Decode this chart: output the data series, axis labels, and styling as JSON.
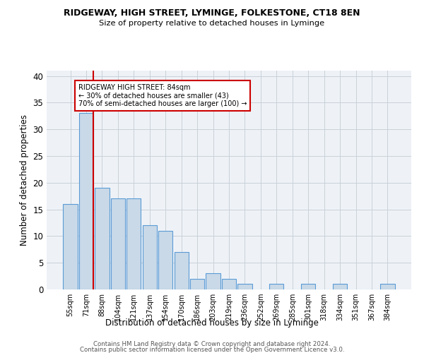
{
  "title1": "RIDGEWAY, HIGH STREET, LYMINGE, FOLKESTONE, CT18 8EN",
  "title2": "Size of property relative to detached houses in Lyminge",
  "xlabel": "Distribution of detached houses by size in Lyminge",
  "ylabel": "Number of detached properties",
  "categories": [
    "55sqm",
    "71sqm",
    "88sqm",
    "104sqm",
    "121sqm",
    "137sqm",
    "154sqm",
    "170sqm",
    "186sqm",
    "203sqm",
    "219sqm",
    "236sqm",
    "252sqm",
    "269sqm",
    "285sqm",
    "301sqm",
    "318sqm",
    "334sqm",
    "351sqm",
    "367sqm",
    "384sqm"
  ],
  "values": [
    16,
    33,
    19,
    17,
    17,
    12,
    11,
    7,
    2,
    3,
    2,
    1,
    0,
    1,
    0,
    1,
    0,
    1,
    0,
    0,
    1
  ],
  "bar_color": "#c9d9e8",
  "bar_edge_color": "#5b9bd5",
  "highlight_line_color": "#cc0000",
  "annotation_line1": "RIDGEWAY HIGH STREET: 84sqm",
  "annotation_line2": "← 30% of detached houses are smaller (43)",
  "annotation_line3": "70% of semi-detached houses are larger (100) →",
  "annotation_box_color": "#cc0000",
  "ylim": [
    0,
    41
  ],
  "yticks": [
    0,
    5,
    10,
    15,
    20,
    25,
    30,
    35,
    40
  ],
  "grid_color": "#c8d0d8",
  "background_color": "#eef2f7",
  "footer1": "Contains HM Land Registry data © Crown copyright and database right 2024.",
  "footer2": "Contains public sector information licensed under the Open Government Licence v3.0."
}
